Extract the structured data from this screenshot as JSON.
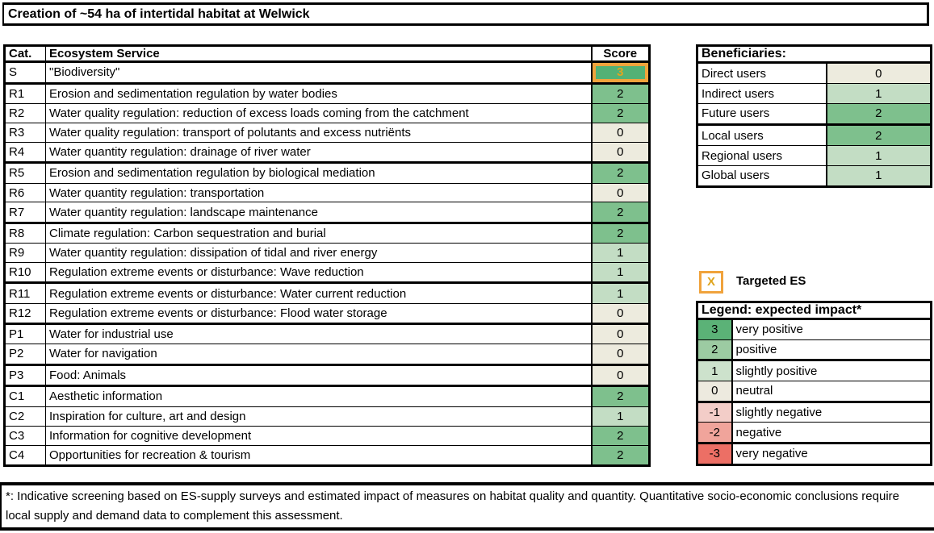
{
  "title": "Creation of ~54 ha of intertidal habitat at Welwick",
  "colors": {
    "accent_orange": "#F0A33C",
    "gold_text": "#DFA51F",
    "score_fill": {
      "3": "#53B175",
      "2": "#7EC08D",
      "1": "#C3DDC4",
      "0": "#EDEBDE"
    },
    "legend_fill": {
      "3": "#5BB277",
      "2": "#9CCBA2",
      "1": "#CDE2CC",
      "0": "#EDEADF",
      "-1": "#F3CDC8",
      "-2": "#F0A49B",
      "-3": "#EC6F65"
    }
  },
  "main_table": {
    "headers": {
      "cat": "Cat.",
      "service": "Ecosystem Service",
      "score": "Score"
    },
    "rows": [
      {
        "cat": "S",
        "service": "\"Biodiversity\"",
        "score": 3,
        "targeted": true,
        "group_end": true
      },
      {
        "cat": "R1",
        "service": "Erosion and sedimentation regulation by water bodies",
        "score": 2,
        "group_end": false
      },
      {
        "cat": "R2",
        "service": "Water quality regulation: reduction of excess loads coming from the catchment",
        "score": 2,
        "group_end": false
      },
      {
        "cat": "R3",
        "service": "Water quality regulation: transport of polutants and excess nutriënts",
        "score": 0,
        "group_end": false
      },
      {
        "cat": "R4",
        "service": "Water quantity regulation: drainage of river water",
        "score": 0,
        "group_end": true
      },
      {
        "cat": "R5",
        "service": "Erosion and sedimentation regulation by biological mediation",
        "score": 2,
        "group_end": false
      },
      {
        "cat": "R6",
        "service": "Water quantity regulation: transportation",
        "score": 0,
        "group_end": false
      },
      {
        "cat": "R7",
        "service": "Water quantity regulation: landscape maintenance",
        "score": 2,
        "group_end": true
      },
      {
        "cat": "R8",
        "service": "Climate regulation: Carbon sequestration and burial",
        "score": 2,
        "group_end": false
      },
      {
        "cat": "R9",
        "service": "Water quantity regulation: dissipation of tidal and river energy",
        "score": 1,
        "group_end": false
      },
      {
        "cat": "R10",
        "service": "Regulation extreme events or disturbance: Wave reduction",
        "score": 1,
        "group_end": true
      },
      {
        "cat": "R11",
        "service": "Regulation extreme events or disturbance: Water current reduction",
        "score": 1,
        "group_end": false
      },
      {
        "cat": "R12",
        "service": "Regulation extreme events or disturbance: Flood water storage",
        "score": 0,
        "group_end": true
      },
      {
        "cat": "P1",
        "service": "Water for industrial use",
        "score": 0,
        "group_end": false
      },
      {
        "cat": "P2",
        "service": "Water for navigation",
        "score": 0,
        "group_end": true
      },
      {
        "cat": "P3",
        "service": "Food: Animals",
        "score": 0,
        "group_end": true
      },
      {
        "cat": "C1",
        "service": "Aesthetic information",
        "score": 2,
        "group_end": false
      },
      {
        "cat": "C2",
        "service": "Inspiration for culture, art and design",
        "score": 1,
        "group_end": false
      },
      {
        "cat": "C3",
        "service": "Information for cognitive development",
        "score": 2,
        "group_end": false
      },
      {
        "cat": "C4",
        "service": "Opportunities for recreation & tourism",
        "score": 2,
        "group_end": false
      }
    ]
  },
  "beneficiaries": {
    "title": "Beneficiaries:",
    "rows": [
      {
        "label": "Direct users",
        "value": 0,
        "group_end": false
      },
      {
        "label": "Indirect users",
        "value": 1,
        "group_end": false
      },
      {
        "label": "Future users",
        "value": 2,
        "group_end": true
      },
      {
        "label": "Local users",
        "value": 2,
        "group_end": false
      },
      {
        "label": "Regional users",
        "value": 1,
        "group_end": false
      },
      {
        "label": "Global users",
        "value": 1,
        "group_end": false
      }
    ]
  },
  "targeted_marker": {
    "symbol": "X",
    "label": "Targeted ES"
  },
  "impact_legend": {
    "title": "Legend: expected impact*",
    "rows": [
      {
        "value": 3,
        "label": "very positive",
        "group_end": false
      },
      {
        "value": 2,
        "label": "positive",
        "group_end": true
      },
      {
        "value": 1,
        "label": "slightly positive",
        "group_end": false
      },
      {
        "value": 0,
        "label": "neutral",
        "group_end": true
      },
      {
        "value": -1,
        "label": "slightly negative",
        "group_end": false
      },
      {
        "value": -2,
        "label": "negative",
        "group_end": true
      },
      {
        "value": -3,
        "label": "very negative",
        "group_end": false
      }
    ]
  },
  "footnote": "*: Indicative screening based on ES-supply surveys and estimated impact of measures on habitat quality and quantity. Quantitative socio-economic conclusions require local supply and demand data to complement this assessment."
}
